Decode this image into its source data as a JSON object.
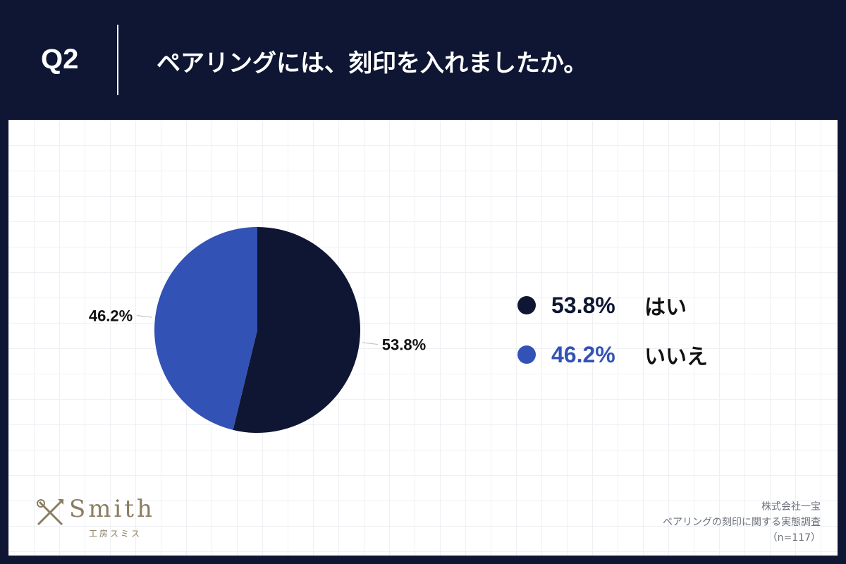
{
  "header": {
    "question_number": "Q2",
    "question_text": "ペアリングには、刻印を入れましたか。"
  },
  "colors": {
    "background": "#0e1633",
    "yes": "#0e1633",
    "no": "#3352b5"
  },
  "chart_data": {
    "type": "pie",
    "categories": [
      "はい",
      "いいえ"
    ],
    "values": [
      53.8,
      46.2
    ],
    "value_labels": [
      "53.8%",
      "46.2%"
    ],
    "colors": [
      "#0e1633",
      "#3352b5"
    ],
    "legend_placement": "right"
  },
  "legend": [
    {
      "value": "53.8%",
      "label": "はい",
      "color": "#0e1633"
    },
    {
      "value": "46.2%",
      "label": "いいえ",
      "color": "#3352b5"
    }
  ],
  "logo": {
    "word": "Smith",
    "sub": "工房スミス"
  },
  "source": {
    "company": "株式会社一宝",
    "survey": "ペアリングの刻印に関する実態調査",
    "sample": "（n=117）"
  }
}
